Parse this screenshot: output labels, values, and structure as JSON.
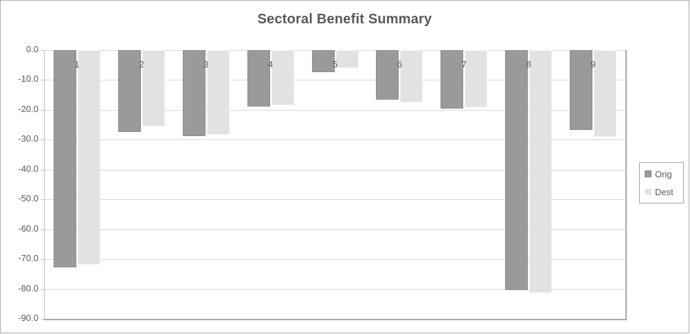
{
  "window": {
    "background": "#ffffff",
    "border_color": "#ababab"
  },
  "chart_data": {
    "type": "bar",
    "title": "Sectoral Benefit Summary",
    "categories": [
      "1",
      "2",
      "3",
      "4",
      "5",
      "6",
      "7",
      "8",
      "9"
    ],
    "series": [
      {
        "name": "Orig",
        "color": "#9a9a9a",
        "values": [
          -72.8,
          -27.3,
          -28.8,
          -18.9,
          -7.3,
          -16.6,
          -19.6,
          -80.3,
          -26.6
        ]
      },
      {
        "name": "Dest",
        "color": "#e2e2e2",
        "values": [
          -71.8,
          -25.6,
          -28.4,
          -18.4,
          -5.9,
          -17.6,
          -19.2,
          -81.3,
          -29.1
        ]
      }
    ],
    "xlabel": "",
    "ylabel": "",
    "ylim": [
      -90,
      0
    ],
    "ytick_step": 10,
    "ytick_labels": [
      "0.0",
      "-10.0",
      "-20.0",
      "-30.0",
      "-40.0",
      "-50.0",
      "-60.0",
      "-70.0",
      "-80.0",
      "-90.0"
    ],
    "grid": true,
    "legend_position": "right",
    "colors": {
      "text": "#595959",
      "gridline": "#d9d9d9",
      "axis_line": "#bfbfbf",
      "plot_border": "#a6a6a6"
    }
  }
}
